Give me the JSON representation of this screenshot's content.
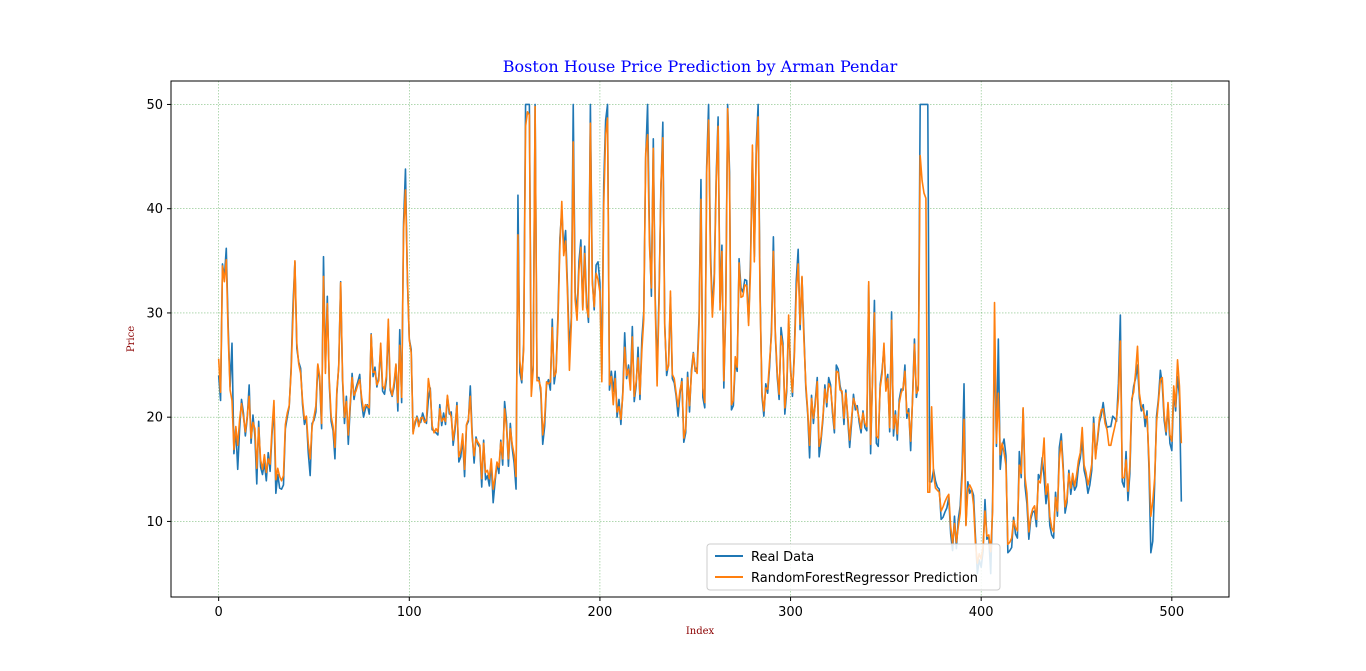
{
  "chart_data": {
    "type": "line",
    "title": "Boston House Price Prediction by Arman Pendar",
    "xlabel": "Index",
    "ylabel": "Price",
    "xlim": [
      -25,
      530
    ],
    "ylim": [
      2.75,
      52.25
    ],
    "xticks": [
      0,
      100,
      200,
      300,
      400,
      500
    ],
    "yticks": [
      10,
      20,
      30,
      40,
      50
    ],
    "grid": true,
    "legend_position": "bottom-center",
    "colors": {
      "title": "#0000ff",
      "axis_label": "#8b0000",
      "grid": "#008000",
      "real": "#1f77b4",
      "prediction": "#ff7f0e"
    },
    "series": [
      {
        "name": "Real Data",
        "x_start": 0,
        "values": [
          24.0,
          21.6,
          34.7,
          33.4,
          36.2,
          28.7,
          22.9,
          27.1,
          16.5,
          18.9,
          15.0,
          18.9,
          21.7,
          20.4,
          18.2,
          19.9,
          23.1,
          17.5,
          20.2,
          18.2,
          13.6,
          19.6,
          15.2,
          14.5,
          15.6,
          13.9,
          16.6,
          14.8,
          18.4,
          21.0,
          12.7,
          14.5,
          13.2,
          13.1,
          13.5,
          18.9,
          20.0,
          21.0,
          24.7,
          30.8,
          34.9,
          26.6,
          25.3,
          24.7,
          21.2,
          19.3,
          20.0,
          16.6,
          14.4,
          19.4,
          19.7,
          20.5,
          25.0,
          23.4,
          18.9,
          35.4,
          24.7,
          31.6,
          23.3,
          19.6,
          18.7,
          16.0,
          22.2,
          25.0,
          33.0,
          23.5,
          19.4,
          22.0,
          17.4,
          20.9,
          24.2,
          21.7,
          22.8,
          23.4,
          24.1,
          21.4,
          20.0,
          20.8,
          21.2,
          20.3,
          28.0,
          23.9,
          24.8,
          22.9,
          23.9,
          26.6,
          22.5,
          22.2,
          23.6,
          28.7,
          22.6,
          22.0,
          22.9,
          25.0,
          20.6,
          28.4,
          21.4,
          38.7,
          43.8,
          33.2,
          27.5,
          26.5,
          18.6,
          19.3,
          20.1,
          19.5,
          19.5,
          20.4,
          19.8,
          19.4,
          21.7,
          22.8,
          18.8,
          18.7,
          18.5,
          18.3,
          21.2,
          19.2,
          20.4,
          19.3,
          22.0,
          20.3,
          20.5,
          17.3,
          18.8,
          21.4,
          15.7,
          16.2,
          18.0,
          14.3,
          19.2,
          19.6,
          23.0,
          18.4,
          15.6,
          18.1,
          17.4,
          17.1,
          13.3,
          17.8,
          14.0,
          14.4,
          13.4,
          15.6,
          11.8,
          13.8,
          15.6,
          14.6,
          17.8,
          15.4,
          21.5,
          19.6,
          15.3,
          19.4,
          17.0,
          15.6,
          13.1,
          41.3,
          24.3,
          23.3,
          27.0,
          50.0,
          50.0,
          50.0,
          22.7,
          25.0,
          50.0,
          23.8,
          23.8,
          22.3,
          17.4,
          19.1,
          23.1,
          23.6,
          22.6,
          29.4,
          23.2,
          24.6,
          29.9,
          37.2,
          39.8,
          36.2,
          37.9,
          32.5,
          26.4,
          29.6,
          50.0,
          32.0,
          29.8,
          34.9,
          37.0,
          30.5,
          36.4,
          31.1,
          29.1,
          50.0,
          33.3,
          30.3,
          34.6,
          34.9,
          32.9,
          24.1,
          42.3,
          48.5,
          50.0,
          22.6,
          24.4,
          22.5,
          24.4,
          20.0,
          21.7,
          19.3,
          22.4,
          28.1,
          23.7,
          25.0,
          23.3,
          28.7,
          21.5,
          23.0,
          26.7,
          21.7,
          27.5,
          30.1,
          44.8,
          50.0,
          37.6,
          31.6,
          46.7,
          31.5,
          24.3,
          31.7,
          41.7,
          48.3,
          29.0,
          24.0,
          25.1,
          31.5,
          23.7,
          23.3,
          22.0,
          20.1,
          22.2,
          23.7,
          17.6,
          18.5,
          24.3,
          20.5,
          24.5,
          26.2,
          24.4,
          24.8,
          29.6,
          42.8,
          21.9,
          20.9,
          44.0,
          50.0,
          36.0,
          30.1,
          33.8,
          43.1,
          48.8,
          31.0,
          36.5,
          22.8,
          30.7,
          50.0,
          43.5,
          20.7,
          21.1,
          25.2,
          24.4,
          35.2,
          32.4,
          32.0,
          33.2,
          33.1,
          29.1,
          35.1,
          45.4,
          35.4,
          46.0,
          50.0,
          32.2,
          22.0,
          20.1,
          23.2,
          22.3,
          24.8,
          28.5,
          37.3,
          27.9,
          23.9,
          21.7,
          28.6,
          27.1,
          20.3,
          22.5,
          29.0,
          24.8,
          22.0,
          26.4,
          33.1,
          36.1,
          28.4,
          33.4,
          28.2,
          22.8,
          20.3,
          16.1,
          22.1,
          19.4,
          21.6,
          23.8,
          16.2,
          17.8,
          19.8,
          23.1,
          21.0,
          23.8,
          23.1,
          20.4,
          18.5,
          25.0,
          24.6,
          23.0,
          22.2,
          19.3,
          22.6,
          19.8,
          17.1,
          19.4,
          22.2,
          20.7,
          21.1,
          19.5,
          18.5,
          20.6,
          19.0,
          18.7,
          32.7,
          16.5,
          23.9,
          31.2,
          17.5,
          17.2,
          23.1,
          24.5,
          26.6,
          22.9,
          24.1,
          18.6,
          30.1,
          18.2,
          20.6,
          17.8,
          21.7,
          22.7,
          22.6,
          25.0,
          19.9,
          20.8,
          16.8,
          21.9,
          27.5,
          21.9,
          23.1,
          50.0,
          50.0,
          50.0,
          50.0,
          50.0,
          13.8,
          13.8,
          15.0,
          13.9,
          13.3,
          13.1,
          10.2,
          10.4,
          10.9,
          11.3,
          12.3,
          8.8,
          7.2,
          10.5,
          7.4,
          10.2,
          11.5,
          15.1,
          23.2,
          9.7,
          13.8,
          12.7,
          13.1,
          12.5,
          8.5,
          5.0,
          6.3,
          5.6,
          7.2,
          12.1,
          8.3,
          8.5,
          5.0,
          11.9,
          27.9,
          17.2,
          27.5,
          15.0,
          17.2,
          17.9,
          16.3,
          7.0,
          7.2,
          7.5,
          10.4,
          8.8,
          8.4,
          16.7,
          14.2,
          20.8,
          13.4,
          11.7,
          8.3,
          10.2,
          10.9,
          11.0,
          9.5,
          14.5,
          14.1,
          16.1,
          14.3,
          11.7,
          13.4,
          9.6,
          8.7,
          8.4,
          12.8,
          10.5,
          17.1,
          18.4,
          15.4,
          10.8,
          11.8,
          14.9,
          12.6,
          14.1,
          13.0,
          13.4,
          15.2,
          16.1,
          17.8,
          14.9,
          14.1,
          12.7,
          13.5,
          14.9,
          20.0,
          16.4,
          17.7,
          19.5,
          20.2,
          21.4,
          19.9,
          19.0,
          19.1,
          19.1,
          20.1,
          19.9,
          19.6,
          23.2,
          29.8,
          13.8,
          13.3,
          16.7,
          12.0,
          14.6,
          21.4,
          23.0,
          23.7,
          25.0,
          21.8,
          20.6,
          21.2,
          19.1,
          20.6,
          15.2,
          7.0,
          8.1,
          13.6,
          20.1,
          21.8,
          24.5,
          23.1,
          19.7,
          18.3,
          21.2,
          17.5,
          16.8,
          22.4,
          20.6,
          23.9,
          22.0,
          11.9
        ]
      },
      {
        "name": "RandomForestRegressor Prediction",
        "x_start": 0,
        "values": [
          25.6,
          22.4,
          34.5,
          33.0,
          35.1,
          27.8,
          22.6,
          21.6,
          16.9,
          19.1,
          17.3,
          19.8,
          21.3,
          20.0,
          18.6,
          20.1,
          22.0,
          18.0,
          19.5,
          18.9,
          15.1,
          19.0,
          15.9,
          15.0,
          16.4,
          14.7,
          16.0,
          15.5,
          18.9,
          21.6,
          14.0,
          15.1,
          14.3,
          13.9,
          14.4,
          19.3,
          20.4,
          21.1,
          24.3,
          29.7,
          35.0,
          27.1,
          25.1,
          24.2,
          21.6,
          19.8,
          20.1,
          17.5,
          16.0,
          19.1,
          20.0,
          21.1,
          25.1,
          23.9,
          19.4,
          33.5,
          24.2,
          30.9,
          23.7,
          20.1,
          19.1,
          17.1,
          22.6,
          24.8,
          32.9,
          23.8,
          20.0,
          21.5,
          18.3,
          21.3,
          23.8,
          22.1,
          22.5,
          23.1,
          23.6,
          21.9,
          20.6,
          21.2,
          21.1,
          20.9,
          27.9,
          24.3,
          24.4,
          23.1,
          23.5,
          27.1,
          23.0,
          22.7,
          24.0,
          29.4,
          22.9,
          22.1,
          23.3,
          25.1,
          21.4,
          26.9,
          21.9,
          37.9,
          41.8,
          33.6,
          27.4,
          26.2,
          18.4,
          19.6,
          20.0,
          19.1,
          19.9,
          20.0,
          19.5,
          19.7,
          23.7,
          22.5,
          19.2,
          18.5,
          18.9,
          18.6,
          20.8,
          19.6,
          19.9,
          19.6,
          22.1,
          20.6,
          20.0,
          17.8,
          19.2,
          21.1,
          16.2,
          16.8,
          18.4,
          15.0,
          19.3,
          19.8,
          22.0,
          18.0,
          16.3,
          17.9,
          17.6,
          17.3,
          14.1,
          17.5,
          14.7,
          14.9,
          14.1,
          16.0,
          13.1,
          14.2,
          15.7,
          15.2,
          17.6,
          16.0,
          20.8,
          19.0,
          16.0,
          18.9,
          17.4,
          16.4,
          14.3,
          37.5,
          25.4,
          23.6,
          26.5,
          47.9,
          49.3,
          49.0,
          22.0,
          24.6,
          49.8,
          23.5,
          23.5,
          22.8,
          18.3,
          19.8,
          23.4,
          23.2,
          23.4,
          28.6,
          23.9,
          24.3,
          29.1,
          36.4,
          40.7,
          35.5,
          36.9,
          31.8,
          24.5,
          28.9,
          46.4,
          31.3,
          29.3,
          34.1,
          36.3,
          30.3,
          35.7,
          30.5,
          29.6,
          48.2,
          32.9,
          30.6,
          33.8,
          33.2,
          32.0,
          23.4,
          40.3,
          47.1,
          48.7,
          23.1,
          23.9,
          21.2,
          23.7,
          20.5,
          21.0,
          19.8,
          22.1,
          26.7,
          24.0,
          24.6,
          22.6,
          27.7,
          22.0,
          23.4,
          25.7,
          22.2,
          26.4,
          29.4,
          45.3,
          47.1,
          36.5,
          32.4,
          45.8,
          30.8,
          23.0,
          30.9,
          42.3,
          46.8,
          28.6,
          24.5,
          24.9,
          32.1,
          24.1,
          23.7,
          22.3,
          21.0,
          22.6,
          23.4,
          18.0,
          18.9,
          23.8,
          21.1,
          24.1,
          26.1,
          24.6,
          24.2,
          28.8,
          40.9,
          22.8,
          21.4,
          43.4,
          48.5,
          35.1,
          29.6,
          33.0,
          42.6,
          47.9,
          30.3,
          35.9,
          23.5,
          30.1,
          49.6,
          42.6,
          21.2,
          21.6,
          25.8,
          24.8,
          34.8,
          31.5,
          31.6,
          32.7,
          32.6,
          28.8,
          34.1,
          46.1,
          34.9,
          45.3,
          48.8,
          31.4,
          22.4,
          20.6,
          22.8,
          22.7,
          25.4,
          27.9,
          35.9,
          28.2,
          24.3,
          22.2,
          27.8,
          26.7,
          20.9,
          22.9,
          29.8,
          24.4,
          22.4,
          25.8,
          32.0,
          34.7,
          28.9,
          33.5,
          27.5,
          23.2,
          20.6,
          17.3,
          21.8,
          19.9,
          21.2,
          23.4,
          17.2,
          18.1,
          20.1,
          22.7,
          21.4,
          23.2,
          22.8,
          20.8,
          18.9,
          24.4,
          24.3,
          22.6,
          22.5,
          19.9,
          22.3,
          20.2,
          17.8,
          19.9,
          21.8,
          21.2,
          20.7,
          19.9,
          18.9,
          20.4,
          19.4,
          19.1,
          33.0,
          17.4,
          23.6,
          30.0,
          18.2,
          18.0,
          22.8,
          24.1,
          27.1,
          22.5,
          23.7,
          19.0,
          29.3,
          18.9,
          20.2,
          18.4,
          21.3,
          22.3,
          22.8,
          24.4,
          20.4,
          20.4,
          17.7,
          21.6,
          27.0,
          22.3,
          22.6,
          45.1,
          42.7,
          41.5,
          41.0,
          12.8,
          12.8,
          21.0,
          14.6,
          13.2,
          13.0,
          12.8,
          11.0,
          11.4,
          11.9,
          12.3,
          12.6,
          9.5,
          7.9,
          9.8,
          8.0,
          9.5,
          10.8,
          14.2,
          19.8,
          9.6,
          13.1,
          13.5,
          13.1,
          11.6,
          7.9,
          6.0,
          6.9,
          6.4,
          7.6,
          11.0,
          8.6,
          8.7,
          7.1,
          11.0,
          31.0,
          17.5,
          22.3,
          16.4,
          17.5,
          16.6,
          15.4,
          7.8,
          8.0,
          8.4,
          10.1,
          9.4,
          9.1,
          15.4,
          14.6,
          20.9,
          14.2,
          12.7,
          9.0,
          10.5,
          11.2,
          11.5,
          10.2,
          13.9,
          13.7,
          15.5,
          18.0,
          12.6,
          13.6,
          10.5,
          9.4,
          9.0,
          12.3,
          11.0,
          16.0,
          17.7,
          14.9,
          11.4,
          12.2,
          14.6,
          13.2,
          14.6,
          13.4,
          14.4,
          15.8,
          16.6,
          19.0,
          15.4,
          14.7,
          13.5,
          14.3,
          15.5,
          19.4,
          16.0,
          18.0,
          19.8,
          20.7,
          20.8,
          19.4,
          18.8,
          17.3,
          17.3,
          18.2,
          19.0,
          19.9,
          21.8,
          27.3,
          14.2,
          14.2,
          15.9,
          12.9,
          15.3,
          21.8,
          22.4,
          24.3,
          26.8,
          22.3,
          21.0,
          20.7,
          19.9,
          20.1,
          16.0,
          10.5,
          11.9,
          14.1,
          19.5,
          21.5,
          23.6,
          23.8,
          20.2,
          18.6,
          21.4,
          18.3,
          17.7,
          23.0,
          21.0,
          25.5,
          23.0,
          17.5
        ]
      }
    ]
  }
}
